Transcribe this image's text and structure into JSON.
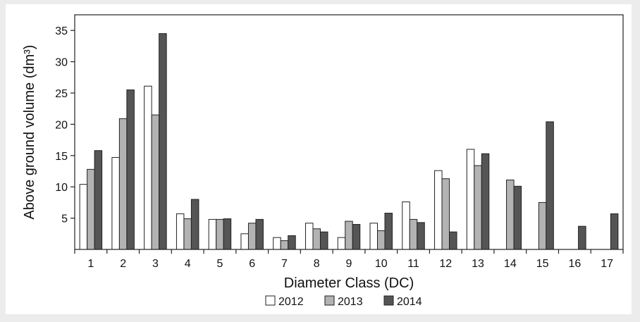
{
  "chart_data": {
    "type": "bar",
    "xlabel": "Diameter Class (DC)",
    "ylabel": "Above ground volume (dm³)",
    "ylim": [
      0,
      37.5
    ],
    "yticks": [
      5,
      10,
      15,
      20,
      25,
      30,
      35
    ],
    "categories": [
      "1",
      "2",
      "3",
      "4",
      "5",
      "6",
      "7",
      "8",
      "9",
      "10",
      "11",
      "12",
      "13",
      "14",
      "15",
      "16",
      "17"
    ],
    "series": [
      {
        "name": "2012",
        "color": "#ffffff",
        "values": [
          10.4,
          14.7,
          26.1,
          5.7,
          4.8,
          2.5,
          1.9,
          4.2,
          1.9,
          4.2,
          7.6,
          12.6,
          16.0,
          0,
          0,
          0,
          0
        ]
      },
      {
        "name": "2013",
        "color": "#b3b3b3",
        "values": [
          12.8,
          20.9,
          21.5,
          4.9,
          4.8,
          4.2,
          1.4,
          3.3,
          4.5,
          3.0,
          4.8,
          11.3,
          13.4,
          11.1,
          7.5,
          0,
          0
        ]
      },
      {
        "name": "2014",
        "color": "#555555",
        "values": [
          15.8,
          25.5,
          34.5,
          8.0,
          4.9,
          4.8,
          2.2,
          2.8,
          4.0,
          5.8,
          4.3,
          2.8,
          15.3,
          10.1,
          20.4,
          3.7,
          5.7
        ]
      }
    ],
    "legend_position": "bottom-center",
    "grid": false
  }
}
